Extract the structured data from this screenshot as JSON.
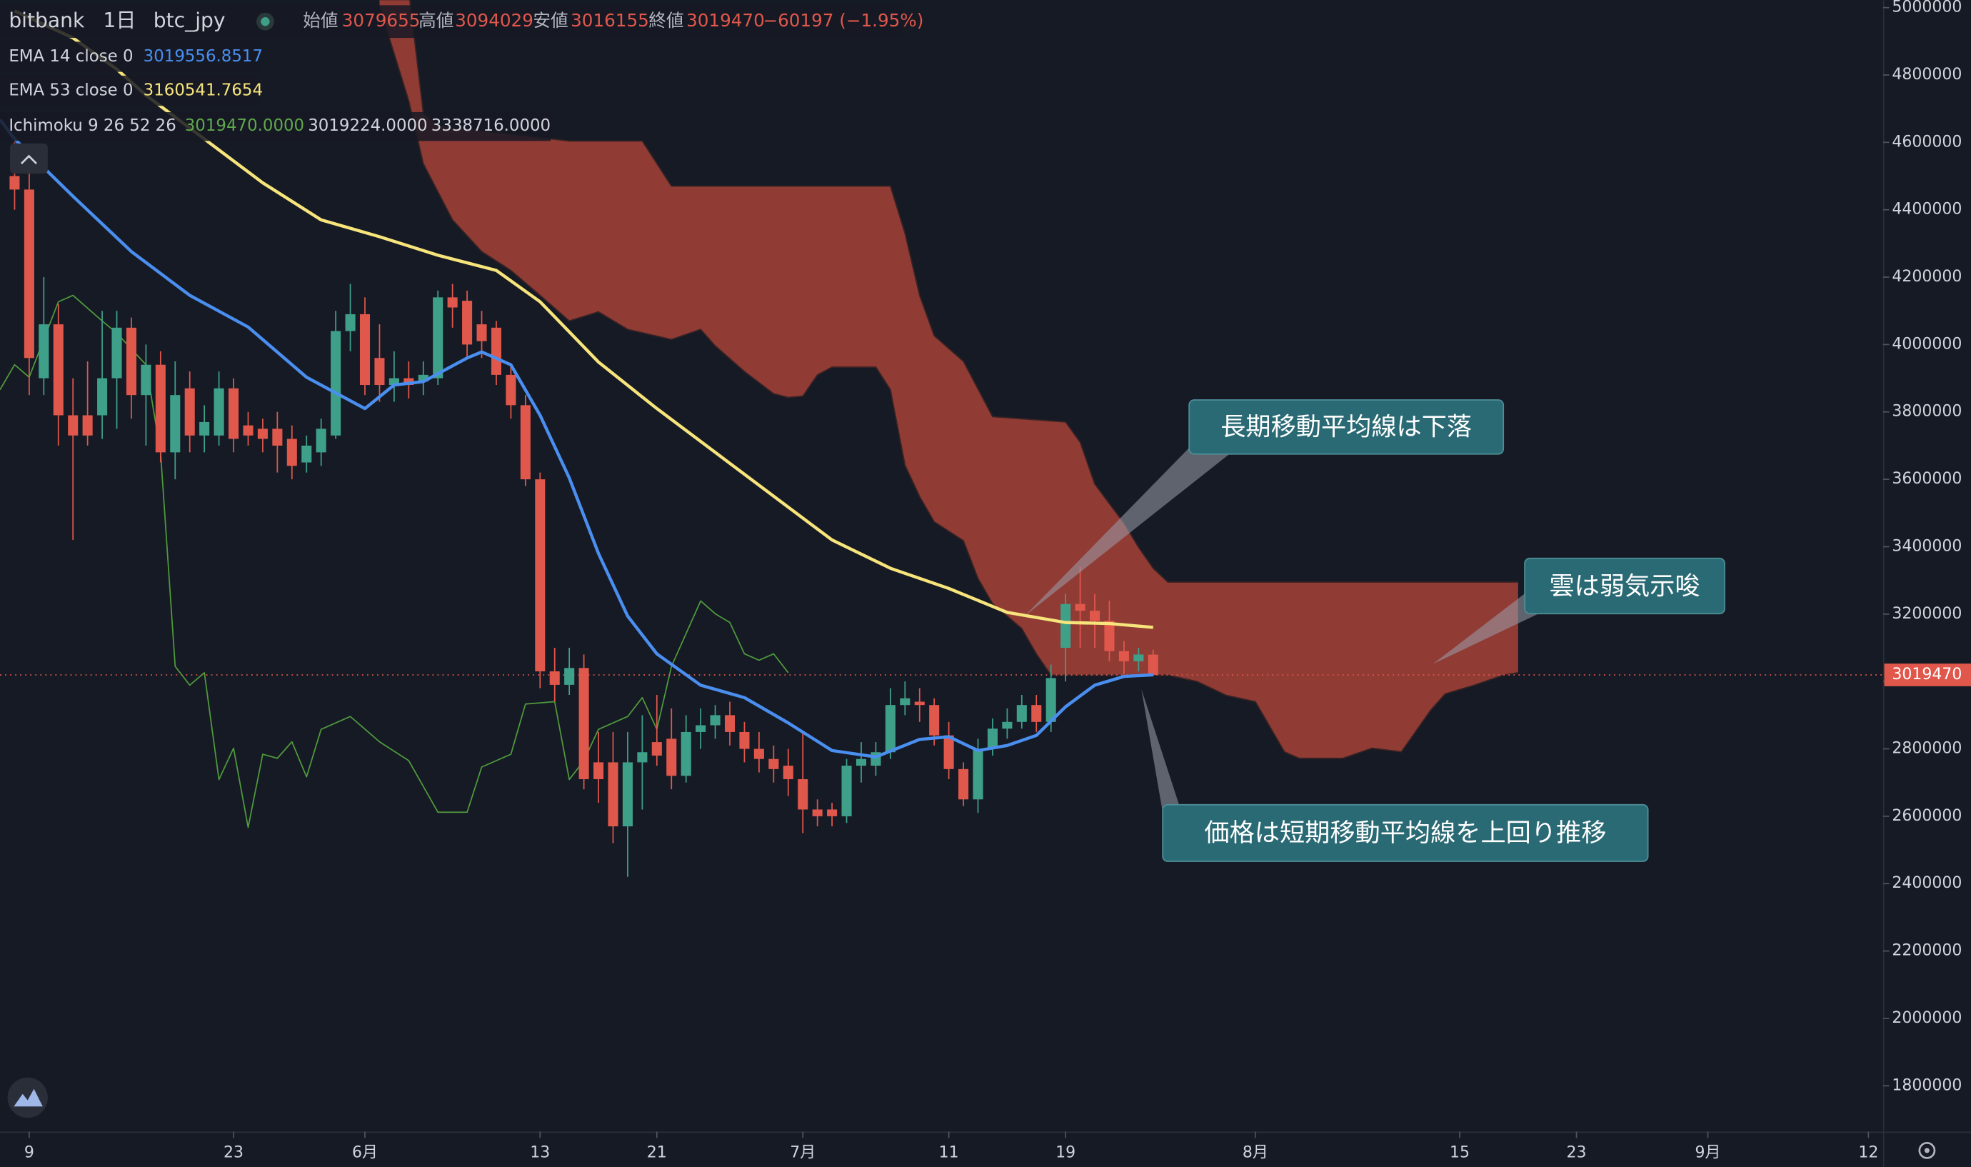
{
  "header": {
    "exchange": "bitbank",
    "interval": "1日",
    "pair": "btc_jpy",
    "open_label": "始値",
    "high_label": "高値",
    "low_label": "安値",
    "close_label": "終値",
    "change": "−60197 (−1.95%)"
  },
  "chart_data": {
    "type": "candlestick",
    "up_color": "#3fa08a",
    "down_color": "#e0574b",
    "xlim": [
      "05-07",
      "09-13"
    ],
    "xticks": [
      {
        "value": "05-09",
        "label": "9"
      },
      {
        "value": "05-23",
        "label": "23"
      },
      {
        "value": "06-01",
        "label": "6月"
      },
      {
        "value": "06-13",
        "label": "13"
      },
      {
        "value": "06-21",
        "label": "21"
      },
      {
        "value": "07-01",
        "label": "7月"
      },
      {
        "value": "07-11",
        "label": "11"
      },
      {
        "value": "07-19",
        "label": "19"
      },
      {
        "value": "08-01",
        "label": "8月"
      },
      {
        "value": "08-15",
        "label": "15"
      },
      {
        "value": "08-23",
        "label": "23"
      },
      {
        "value": "09-01",
        "label": "9月"
      },
      {
        "value": "09-12",
        "label": "12"
      }
    ],
    "ylim": [
      1664000,
      5022000
    ],
    "yticks": [
      1800000,
      2000000,
      2200000,
      2400000,
      2600000,
      2800000,
      3000000,
      3200000,
      3400000,
      3600000,
      3800000,
      4000000,
      4200000,
      4400000,
      4600000,
      4800000,
      5000000
    ],
    "grid": false,
    "x": [
      "05-08",
      "05-09",
      "05-10",
      "05-11",
      "05-12",
      "05-13",
      "05-14",
      "05-15",
      "05-16",
      "05-17",
      "05-18",
      "05-19",
      "05-20",
      "05-21",
      "05-22",
      "05-23",
      "05-24",
      "05-25",
      "05-26",
      "05-27",
      "05-28",
      "05-29",
      "05-30",
      "05-31",
      "06-01",
      "06-02",
      "06-03",
      "06-04",
      "06-05",
      "06-06",
      "06-07",
      "06-08",
      "06-09",
      "06-10",
      "06-11",
      "06-12",
      "06-13",
      "06-14",
      "06-15",
      "06-16",
      "06-17",
      "06-18",
      "06-19",
      "06-20",
      "06-21",
      "06-22",
      "06-23",
      "06-24",
      "06-25",
      "06-26",
      "06-27",
      "06-28",
      "06-29",
      "06-30",
      "07-01",
      "07-02",
      "07-03",
      "07-04",
      "07-05",
      "07-06",
      "07-07",
      "07-08",
      "07-09",
      "07-10",
      "07-11",
      "07-12",
      "07-13",
      "07-14",
      "07-15",
      "07-16",
      "07-17",
      "07-18",
      "07-19",
      "07-20",
      "07-21",
      "07-22",
      "07-23",
      "07-24",
      "07-25"
    ],
    "open": [
      4500000,
      4460000,
      3900000,
      4060000,
      3790000,
      3790000,
      3790000,
      3900000,
      4050000,
      3850000,
      3940000,
      3680000,
      3870000,
      3730000,
      3730000,
      3870000,
      3760000,
      3750000,
      3750000,
      3720000,
      3650000,
      3680000,
      3730000,
      4040000,
      4090000,
      3960000,
      3880000,
      3900000,
      3890000,
      3900000,
      4140000,
      4130000,
      4060000,
      4050000,
      3910000,
      3820000,
      3600000,
      3030000,
      2990000,
      3040000,
      2760000,
      2760000,
      2570000,
      2760000,
      2820000,
      2830000,
      2720000,
      2850000,
      2870000,
      2900000,
      2850000,
      2800000,
      2770000,
      2750000,
      2710000,
      2620000,
      2620000,
      2600000,
      2750000,
      2750000,
      2790000,
      2930000,
      2940000,
      2930000,
      2840000,
      2740000,
      2650000,
      2800000,
      2860000,
      2880000,
      2930000,
      2880000,
      3100000,
      3230000,
      3210000,
      3180000,
      3090000,
      3060000,
      3079655
    ],
    "high": [
      4600000,
      4520000,
      4200000,
      4120000,
      3900000,
      3950000,
      4100000,
      4100000,
      4080000,
      4000000,
      3980000,
      3950000,
      3920000,
      3820000,
      3920000,
      3900000,
      3800000,
      3780000,
      3800000,
      3760000,
      3730000,
      3780000,
      4100000,
      4180000,
      4140000,
      4060000,
      3980000,
      3950000,
      3950000,
      4160000,
      4180000,
      4160000,
      4100000,
      4070000,
      3940000,
      3850000,
      3620000,
      3100000,
      3100000,
      3080000,
      2850000,
      2850000,
      2850000,
      2900000,
      2960000,
      2920000,
      2900000,
      2920000,
      2930000,
      2940000,
      2880000,
      2850000,
      2810000,
      2800000,
      2850000,
      2650000,
      2640000,
      2770000,
      2820000,
      2820000,
      2980000,
      3000000,
      2980000,
      2950000,
      2880000,
      2760000,
      2830000,
      2890000,
      2920000,
      2960000,
      2960000,
      3050000,
      3260000,
      3340000,
      3260000,
      3240000,
      3120000,
      3100000,
      3094029
    ],
    "low": [
      4400000,
      3850000,
      3850000,
      3700000,
      3420000,
      3700000,
      3720000,
      3750000,
      3780000,
      3700000,
      3650000,
      3600000,
      3680000,
      3680000,
      3700000,
      3680000,
      3700000,
      3680000,
      3620000,
      3600000,
      3620000,
      3640000,
      3720000,
      3980000,
      3850000,
      3830000,
      3830000,
      3840000,
      3850000,
      3880000,
      4050000,
      3960000,
      3960000,
      3880000,
      3780000,
      3580000,
      2980000,
      2940000,
      2960000,
      2680000,
      2640000,
      2520000,
      2420000,
      2620000,
      2750000,
      2680000,
      2700000,
      2800000,
      2830000,
      2810000,
      2760000,
      2730000,
      2700000,
      2660000,
      2550000,
      2570000,
      2570000,
      2580000,
      2700000,
      2720000,
      2770000,
      2900000,
      2880000,
      2810000,
      2710000,
      2630000,
      2610000,
      2780000,
      2830000,
      2860000,
      2850000,
      2850000,
      3000000,
      3100000,
      3100000,
      3060000,
      3020000,
      3030000,
      3016155
    ],
    "close": [
      4460000,
      3960000,
      4060000,
      3790000,
      3730000,
      3730000,
      3900000,
      4050000,
      3850000,
      3940000,
      3680000,
      3850000,
      3730000,
      3770000,
      3870000,
      3720000,
      3730000,
      3720000,
      3700000,
      3640000,
      3700000,
      3750000,
      4040000,
      4090000,
      3880000,
      3880000,
      3900000,
      3880000,
      3910000,
      4140000,
      4110000,
      4000000,
      4010000,
      3910000,
      3820000,
      3600000,
      3030000,
      2990000,
      3040000,
      2710000,
      2710000,
      2570000,
      2760000,
      2790000,
      2780000,
      2720000,
      2850000,
      2870000,
      2900000,
      2850000,
      2800000,
      2770000,
      2740000,
      2710000,
      2620000,
      2600000,
      2600000,
      2750000,
      2770000,
      2790000,
      2930000,
      2950000,
      2930000,
      2840000,
      2740000,
      2650000,
      2800000,
      2860000,
      2880000,
      2930000,
      2880000,
      3010000,
      3230000,
      3210000,
      3180000,
      3090000,
      3060000,
      3080000,
      3019470
    ],
    "lines": [
      {
        "name": "EMA 14 close 0",
        "color": "#4a8ff0",
        "x": [
          "05-07",
          "05-08",
          "05-12",
          "05-16",
          "05-20",
          "05-24",
          "05-28",
          "06-01",
          "06-03",
          "06-05",
          "06-08",
          "06-09",
          "06-11",
          "06-13",
          "06-15",
          "06-17",
          "06-19",
          "06-21",
          "06-24",
          "06-27",
          "06-30",
          "07-03",
          "07-06",
          "07-09",
          "07-11",
          "07-13",
          "07-15",
          "07-17",
          "07-19",
          "07-21",
          "07-23",
          "07-25"
        ],
        "values": [
          4668000,
          4610000,
          4440000,
          4276000,
          4146000,
          4052000,
          3903000,
          3810000,
          3880000,
          3890000,
          3960000,
          3978000,
          3940000,
          3790000,
          3604000,
          3380000,
          3194000,
          3082000,
          2989000,
          2952000,
          2877000,
          2795000,
          2776000,
          2828000,
          2836000,
          2795000,
          2810000,
          2840000,
          2925000,
          2989000,
          3015000,
          3019556.8517
        ]
      },
      {
        "name": "EMA 53 close 0",
        "color": "#f7e57c",
        "x": [
          "05-08",
          "05-12",
          "05-15",
          "05-17",
          "05-21",
          "05-25",
          "05-29",
          "06-02",
          "06-06",
          "06-10",
          "06-13",
          "06-17",
          "06-21",
          "06-25",
          "06-29",
          "07-03",
          "07-07",
          "07-11",
          "07-15",
          "07-19",
          "07-22",
          "07-25"
        ],
        "values": [
          4990000,
          4910000,
          4817000,
          4740000,
          4610000,
          4480000,
          4370000,
          4320000,
          4265000,
          4220000,
          4127000,
          3948000,
          3810000,
          3680000,
          3550000,
          3420000,
          3336000,
          3276000,
          3205000,
          3175000,
          3172000,
          3160541.7654
        ]
      }
    ],
    "ichimoku": {
      "name": "Ichimoku 9 26 52 26",
      "legend_values": [
        "3019470.0000",
        "3019224.0000",
        "3338716.0000"
      ],
      "legend_colors": [
        "#5fa84a",
        "#d1d4dc",
        "#d1d4dc"
      ],
      "lagging_color": "#4f9a3c",
      "cloud_color": "#913b35",
      "cloud_edge_color": "#3a2424",
      "lagging": {
        "x": [
          "05-07",
          "05-08",
          "05-09",
          "05-11",
          "05-12",
          "05-14",
          "05-15",
          "05-17",
          "05-18",
          "05-19",
          "05-20",
          "05-21",
          "05-22",
          "05-23",
          "05-24",
          "05-25",
          "05-26",
          "05-27",
          "05-28",
          "05-29",
          "05-31",
          "06-02",
          "06-04",
          "06-06",
          "06-08",
          "06-09",
          "06-11",
          "06-12",
          "06-14",
          "06-15",
          "06-16",
          "06-17",
          "06-19",
          "06-20",
          "06-21",
          "06-22",
          "06-24",
          "06-25",
          "06-26",
          "06-27",
          "06-28",
          "06-29",
          "06-30"
        ],
        "values": [
          3866000,
          3940000,
          3903000,
          4127000,
          4146000,
          4070000,
          4034000,
          3940000,
          3680000,
          3045000,
          2989000,
          3026000,
          2709000,
          2802000,
          2567000,
          2784000,
          2772000,
          2821000,
          2717000,
          2858000,
          2896000,
          2821000,
          2765000,
          2612000,
          2612000,
          2746000,
          2784000,
          2933000,
          2940000,
          2709000,
          2765000,
          2858000,
          2896000,
          2952000,
          2858000,
          3045000,
          3239000,
          3201000,
          3175000,
          3082000,
          3063000,
          3082000,
          3026000
        ]
      },
      "cloud_upper": {
        "x": [
          "06-02",
          "06-04",
          "06-05",
          "06-06",
          "06-15",
          "06-20",
          "06-22",
          "07-07",
          "07-08",
          "07-09",
          "07-10",
          "07-12",
          "07-14",
          "07-19",
          "07-20",
          "07-21",
          "07-23",
          "07-24",
          "07-25",
          "07-26",
          "08-19"
        ],
        "values": [
          5300000,
          5050000,
          4687000,
          4650000,
          4604000,
          4604000,
          4470000,
          4470000,
          4330000,
          4146000,
          4026000,
          3950000,
          3786000,
          3770000,
          3710000,
          3586000,
          3470000,
          3398000,
          3336000,
          3295000,
          3295000
        ]
      },
      "cloud_lower": {
        "x": [
          "06-02",
          "06-04",
          "06-05",
          "06-07",
          "06-09",
          "06-11",
          "06-13",
          "06-15",
          "06-17",
          "06-19",
          "06-22",
          "06-24",
          "06-25",
          "06-27",
          "06-29",
          "06-30",
          "07-01",
          "07-02",
          "07-03",
          "07-06",
          "07-07",
          "07-08",
          "07-09",
          "07-10",
          "07-12",
          "07-13",
          "07-14",
          "07-16",
          "07-17",
          "07-18",
          "07-26",
          "07-28",
          "07-30",
          "08-01",
          "08-03",
          "08-04",
          "08-07",
          "08-09",
          "08-11",
          "08-13",
          "08-14",
          "08-16",
          "08-18",
          "08-19"
        ],
        "values": [
          5004000,
          4724000,
          4537000,
          4370000,
          4276000,
          4220000,
          4146000,
          4070000,
          4097000,
          4045000,
          4015000,
          4045000,
          3996000,
          3920000,
          3854000,
          3843000,
          3847000,
          3910000,
          3933000,
          3933000,
          3866000,
          3642000,
          3549000,
          3474000,
          3418000,
          3306000,
          3231000,
          3157000,
          3082000,
          3019000,
          3019000,
          3000000,
          2959000,
          2940000,
          2791000,
          2772000,
          2772000,
          2802000,
          2791000,
          2914000,
          2963000,
          2989000,
          3019000,
          3026000
        ]
      }
    },
    "annotations": [
      "長期移動平均線は下落",
      "雲は弱気示唆",
      "価格は短期移動平均線を上回り推移"
    ]
  }
}
